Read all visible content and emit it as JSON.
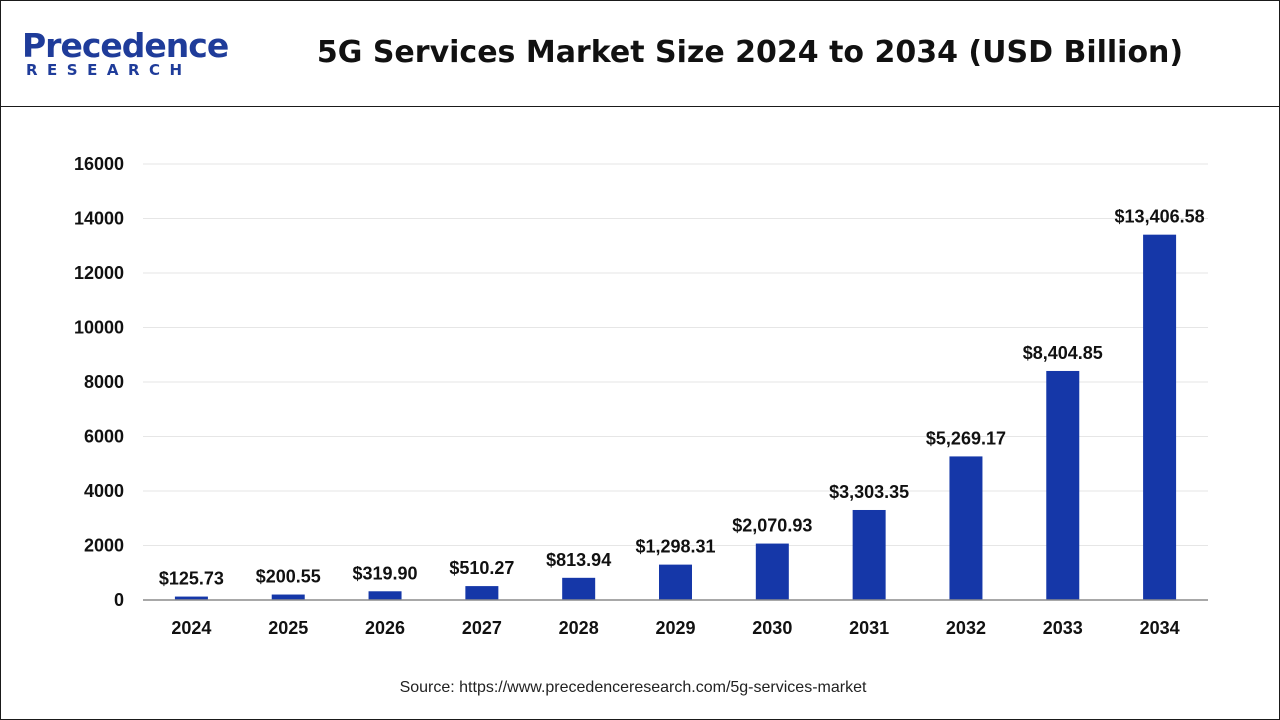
{
  "brand": {
    "name_line1": "Precedence",
    "name_line2": "RESEARCH",
    "color": "#1f3c9a"
  },
  "chart_data": {
    "type": "bar",
    "title": "5G Services Market Size 2024 to 2034 (USD Billion)",
    "xlabel": "",
    "ylabel": "",
    "categories": [
      "2024",
      "2025",
      "2026",
      "2027",
      "2028",
      "2029",
      "2030",
      "2031",
      "2032",
      "2033",
      "2034"
    ],
    "values": [
      125.73,
      200.55,
      319.9,
      510.27,
      813.94,
      1298.31,
      2070.93,
      3303.35,
      5269.17,
      8404.85,
      13406.58
    ],
    "data_labels": [
      "$125.73",
      "$200.55",
      "$319.90",
      "$510.27",
      "$813.94",
      "$1,298.31",
      "$2,070.93",
      "$3,303.35",
      "$5,269.17",
      "$8,404.85",
      "$13,406.58"
    ],
    "ylim": [
      0,
      16000
    ],
    "yticks": [
      0,
      2000,
      4000,
      6000,
      8000,
      10000,
      12000,
      14000,
      16000
    ],
    "grid": true,
    "legend": "none",
    "bar_color": "#1537a8"
  },
  "source": "Source: https://www.precedenceresearch.com/5g-services-market"
}
